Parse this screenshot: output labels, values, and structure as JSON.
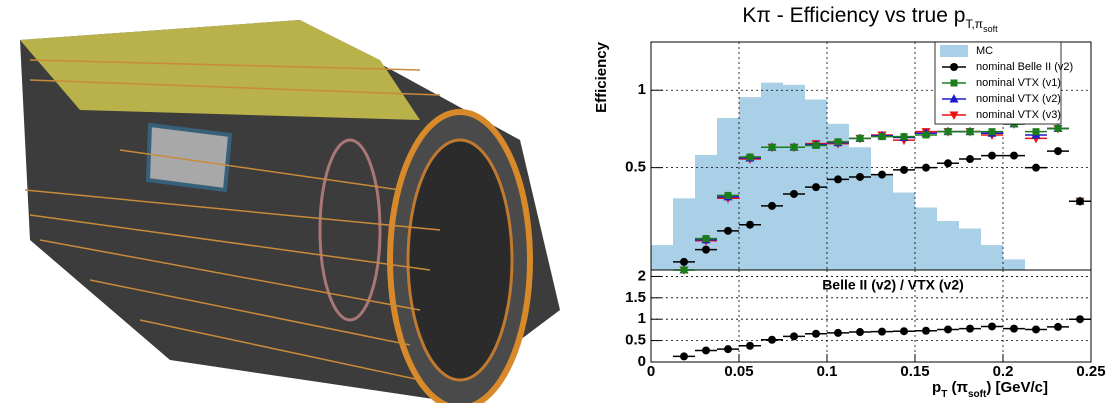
{
  "chart_data": [
    {
      "type": "scatter",
      "title_parts": [
        "Kπ - Efficiency vs true p",
        "T,π",
        "soft"
      ],
      "y_label": "Efficiency",
      "log_y": true,
      "grid": true,
      "xlim": [
        0,
        0.25
      ],
      "ylim": [
        0.2,
        1.54
      ],
      "yticks": [
        0.5,
        1
      ],
      "x": [
        0.01875,
        0.03125,
        0.04375,
        0.05625,
        0.06875,
        0.08125,
        0.09375,
        0.10625,
        0.11875,
        0.13125,
        0.14375,
        0.15625,
        0.16875,
        0.18125,
        0.19375,
        0.20625,
        0.21875,
        0.23125,
        0.24375
      ],
      "histogram": {
        "name": "MC",
        "color": "#a9d0e6",
        "bins": [
          0,
          0.0125,
          0.025,
          0.0375,
          0.05,
          0.0625,
          0.075,
          0.0875,
          0.1,
          0.1125,
          0.125,
          0.1375,
          0.15,
          0.1625,
          0.175,
          0.1875,
          0.2,
          0.2125,
          0.225,
          0.2375,
          0.25
        ],
        "values": [
          0.25,
          0.38,
          0.56,
          0.78,
          0.94,
          1.07,
          1.05,
          0.92,
          0.74,
          0.6,
          0.47,
          0.4,
          0.35,
          0.31,
          0.29,
          0.25,
          0.22,
          0.2,
          0.2,
          0.2
        ]
      },
      "series": [
        {
          "name": "nominal Belle II (v2)",
          "color": "#000000",
          "marker": "circle",
          "values": [
            0.215,
            0.24,
            0.284,
            0.3,
            0.355,
            0.395,
            0.42,
            0.45,
            0.46,
            0.47,
            0.49,
            0.5,
            0.52,
            0.54,
            0.557,
            0.557,
            0.5,
            0.58,
            0.37
          ]
        },
        {
          "name": "nominal VTX (v1)",
          "color": "#1b7d1b",
          "marker": "square",
          "values": [
            0.2,
            0.265,
            0.39,
            0.55,
            0.6,
            0.6,
            0.61,
            0.63,
            0.65,
            0.66,
            0.66,
            0.67,
            0.69,
            0.69,
            0.69,
            0.74,
            0.69,
            0.71,
            0.37
          ]
        },
        {
          "name": "nominal VTX (v2)",
          "color": "#1c1ccc",
          "marker": "triangle",
          "values": [
            0.2,
            0.262,
            0.385,
            0.545,
            0.6,
            0.6,
            0.615,
            0.625,
            0.65,
            0.665,
            0.655,
            0.68,
            0.69,
            0.69,
            0.68,
            0.74,
            0.67,
            0.71,
            0.37
          ]
        },
        {
          "name": "nominal VTX (v3)",
          "color": "#ee1111",
          "marker": "triangle-down",
          "values": [
            0.2,
            0.26,
            0.38,
            0.54,
            0.6,
            0.6,
            0.62,
            0.62,
            0.65,
            0.67,
            0.64,
            0.69,
            0.69,
            0.69,
            0.67,
            0.74,
            0.65,
            0.71,
            0.37
          ]
        }
      ]
    },
    {
      "type": "scatter",
      "annotation": "Belle II (v2) / VTX (v2)",
      "grid": true,
      "xlim": [
        0,
        0.25
      ],
      "ylim": [
        0,
        2.15
      ],
      "xticks": [
        0,
        0.05,
        0.1,
        0.15,
        0.2,
        0.25
      ],
      "yticks": [
        0,
        0.5,
        1,
        1.5,
        2
      ],
      "x_label_parts": [
        "p",
        "T",
        " (π",
        "soft",
        ") [GeV/c]"
      ],
      "x": [
        0.01875,
        0.03125,
        0.04375,
        0.05625,
        0.06875,
        0.08125,
        0.09375,
        0.10625,
        0.11875,
        0.13125,
        0.14375,
        0.15625,
        0.16875,
        0.18125,
        0.19375,
        0.20625,
        0.21875,
        0.23125,
        0.24375
      ],
      "color": "#000000",
      "values": [
        0.13,
        0.27,
        0.3,
        0.38,
        0.52,
        0.6,
        0.66,
        0.68,
        0.7,
        0.71,
        0.72,
        0.73,
        0.76,
        0.78,
        0.83,
        0.78,
        0.76,
        0.82,
        1.0
      ]
    }
  ]
}
